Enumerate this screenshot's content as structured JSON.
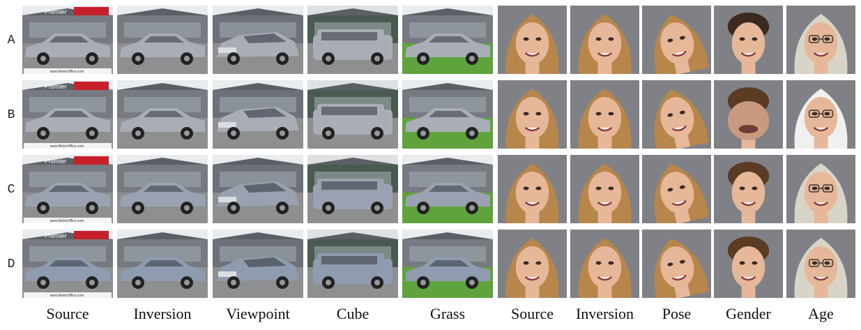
{
  "row_labels": [
    "A",
    "B",
    "C",
    "D"
  ],
  "columns": [
    {
      "label": "Source",
      "kind": "car",
      "variant": "source"
    },
    {
      "label": "Inversion",
      "kind": "car",
      "variant": "inversion"
    },
    {
      "label": "Viewpoint",
      "kind": "car",
      "variant": "viewpoint"
    },
    {
      "label": "Cube",
      "kind": "car",
      "variant": "cube"
    },
    {
      "label": "Grass",
      "kind": "car",
      "variant": "grass"
    },
    {
      "label": "Source",
      "kind": "face",
      "variant": "source"
    },
    {
      "label": "Inversion",
      "kind": "face",
      "variant": "inversion"
    },
    {
      "label": "Pose",
      "kind": "face",
      "variant": "pose"
    },
    {
      "label": "Gender",
      "kind": "face",
      "variant": "gender"
    },
    {
      "label": "Age",
      "kind": "face",
      "variant": "age"
    }
  ],
  "watermark": {
    "sign_text": "Premier",
    "caption": "www.MetroOffice.com"
  },
  "colors": {
    "car_body": "#a9adb6",
    "car_dark": "#4a4f58",
    "sky": "#e8ecef",
    "grass": "#5ea33c",
    "skin": "#e6b899",
    "hair": "#b8864a",
    "gray_hair": "#d9d4c8",
    "bg_face": "#7f8186"
  }
}
